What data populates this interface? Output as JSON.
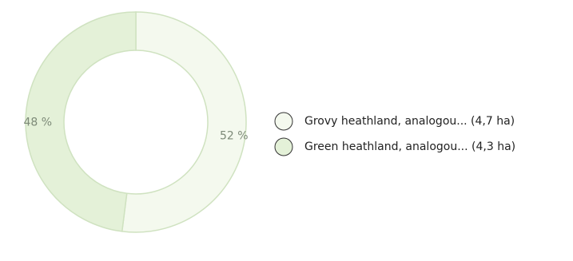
{
  "chart_data": {
    "type": "donut",
    "labels": [
      "Grovy heathland, analogou... (4,7 ha)",
      "Green heathland, analogou... (4,3 ha)"
    ],
    "values": [
      52,
      48
    ],
    "value_labels": [
      "52 %",
      "48 %"
    ],
    "colors": [
      "#f4f9ee",
      "#e4f1d8"
    ],
    "legend": "right"
  }
}
